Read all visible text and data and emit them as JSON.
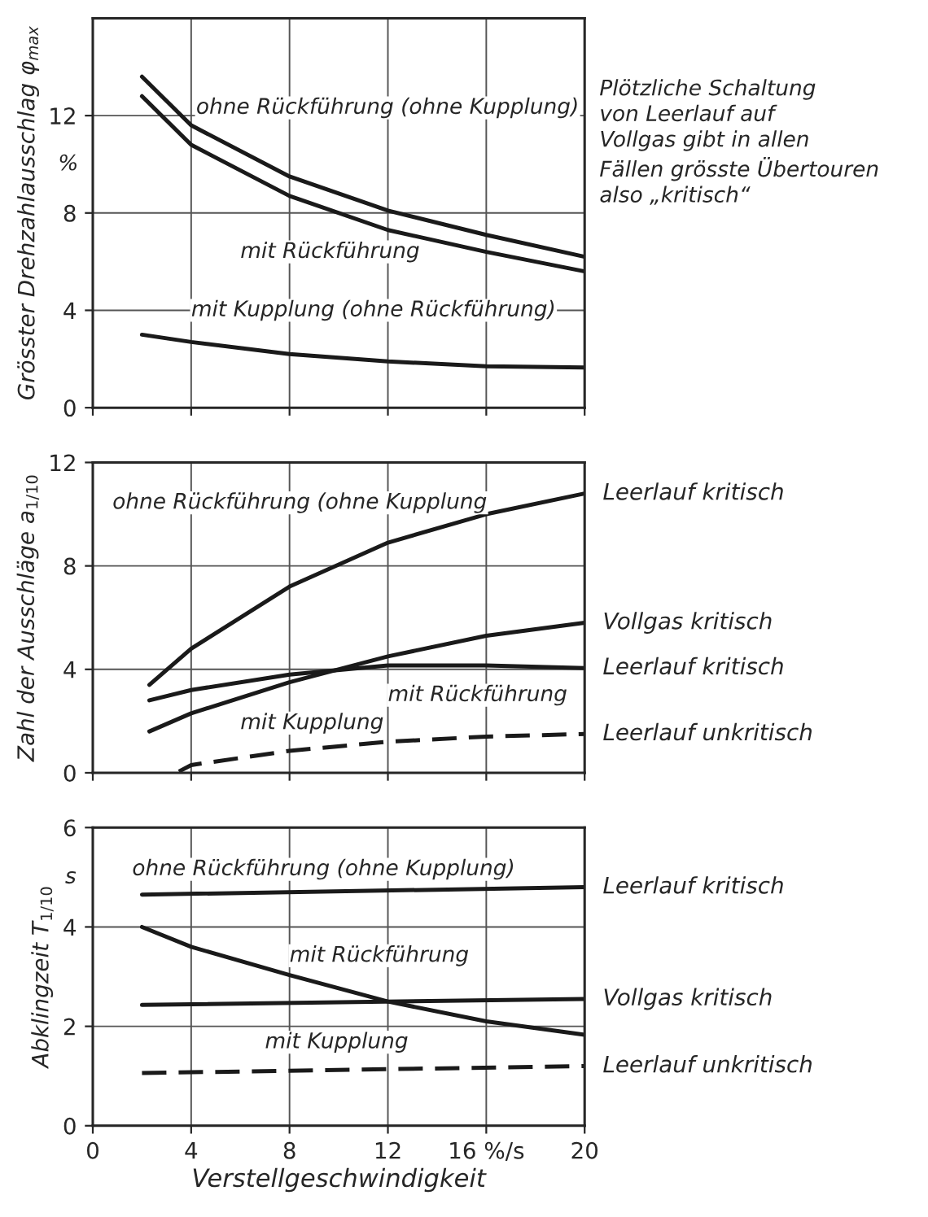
{
  "chart_data": [
    {
      "type": "line",
      "ylabel": "Grösster Drehzahlausschlag φ$_{max}$",
      "xlim": [
        0,
        20
      ],
      "xticks": [
        0,
        4,
        8,
        12,
        16,
        20
      ],
      "ylim": [
        0,
        16
      ],
      "yticks": [
        0,
        4,
        8,
        12
      ],
      "grid": true,
      "tick_labels": "y",
      "marker": "none",
      "x": [
        2,
        4,
        8,
        12,
        16,
        20
      ],
      "series": [
        {
          "color": "#1a1a1a",
          "line_style": "solid",
          "values": [
            13.6,
            11.6,
            9.5,
            8.1,
            7.1,
            6.2
          ]
        },
        {
          "color": "#1a1a1a",
          "line_style": "solid",
          "values": [
            12.8,
            10.8,
            8.7,
            7.3,
            6.4,
            5.6
          ]
        },
        {
          "color": "#1a1a1a",
          "line_style": "solid",
          "values": [
            3.0,
            2.7,
            2.2,
            1.9,
            1.7,
            1.65
          ]
        }
      ],
      "annotations": [
        "ohne Rückführung (ohne Kupplung)",
        "mit Rückführung",
        "mit Kupplung (ohne Rückführung)",
        "Plötzliche Schaltung\nvon Leerlauf auf\nVollgas gibt in allen\nFällen grösste Übertouren\nalso „kritisch“",
        "%"
      ]
    },
    {
      "type": "line",
      "ylabel": "Zahl der Ausschläge a$_{1/10}$",
      "xlim": [
        0,
        20
      ],
      "xticks": [
        0,
        4,
        8,
        12,
        16,
        20
      ],
      "ylim": [
        0,
        12
      ],
      "yticks": [
        0,
        4,
        8,
        12
      ],
      "grid": true,
      "tick_labels": "y",
      "marker": "none",
      "series": [
        {
          "name": "Leerlauf kritisch",
          "color": "#1a1a1a",
          "line_style": "solid",
          "x": [
            2.3,
            4,
            8,
            12,
            16,
            20
          ],
          "values": [
            3.4,
            4.8,
            7.2,
            8.9,
            10.0,
            10.8
          ]
        },
        {
          "name": "Vollgas kritisch",
          "color": "#1a1a1a",
          "line_style": "solid",
          "x": [
            2.3,
            4,
            8,
            12,
            16,
            20
          ],
          "values": [
            1.6,
            2.3,
            3.5,
            4.5,
            5.3,
            5.8
          ]
        },
        {
          "name": "Leerlauf kritisch",
          "color": "#1a1a1a",
          "line_style": "solid",
          "x": [
            2.3,
            4,
            8,
            12,
            16,
            20
          ],
          "values": [
            2.8,
            3.2,
            3.8,
            4.15,
            4.15,
            4.05
          ]
        },
        {
          "name": "Leerlauf unkritisch",
          "color": "#1a1a1a",
          "line_style": "dashed",
          "x": [
            3.5,
            4,
            8,
            12,
            16,
            20
          ],
          "values": [
            0.05,
            0.3,
            0.85,
            1.2,
            1.4,
            1.5
          ]
        }
      ],
      "annotations": [
        "ohne Rückführung (ohne Kupplung",
        "mit Rückführung",
        "mit Kupplung"
      ]
    },
    {
      "type": "line",
      "xlabel": "Verstellgeschwindigkeit",
      "ylabel": "Abklingzeit T$_{1/10}$",
      "xlim": [
        0,
        20
      ],
      "xticks": [
        0,
        4,
        8,
        12,
        {
          "value": 16,
          "label": "16 %/s"
        },
        20
      ],
      "ylim": [
        0,
        6
      ],
      "yticks": [
        0,
        2,
        4,
        6
      ],
      "grid": true,
      "marker": "none",
      "series": [
        {
          "name": "Leerlauf kritisch",
          "color": "#1a1a1a",
          "line_style": "solid",
          "x": [
            2,
            20
          ],
          "values": [
            4.65,
            4.8
          ]
        },
        {
          "color": "#1a1a1a",
          "line_style": "solid",
          "x": [
            2,
            4,
            8,
            12,
            16,
            20
          ],
          "values": [
            4.0,
            3.6,
            3.03,
            2.5,
            2.1,
            1.83
          ]
        },
        {
          "name": "Vollgas kritisch",
          "color": "#1a1a1a",
          "line_style": "solid",
          "x": [
            2,
            20
          ],
          "values": [
            2.43,
            2.55
          ]
        },
        {
          "name": "Leerlauf unkritisch",
          "color": "#1a1a1a",
          "line_style": "dashed",
          "x": [
            2,
            20
          ],
          "values": [
            1.06,
            1.2
          ]
        }
      ],
      "annotations": [
        "ohne Rückführung (ohne Kupplung)",
        "mit Rückführung",
        "mit Kupplung",
        "s"
      ]
    }
  ]
}
